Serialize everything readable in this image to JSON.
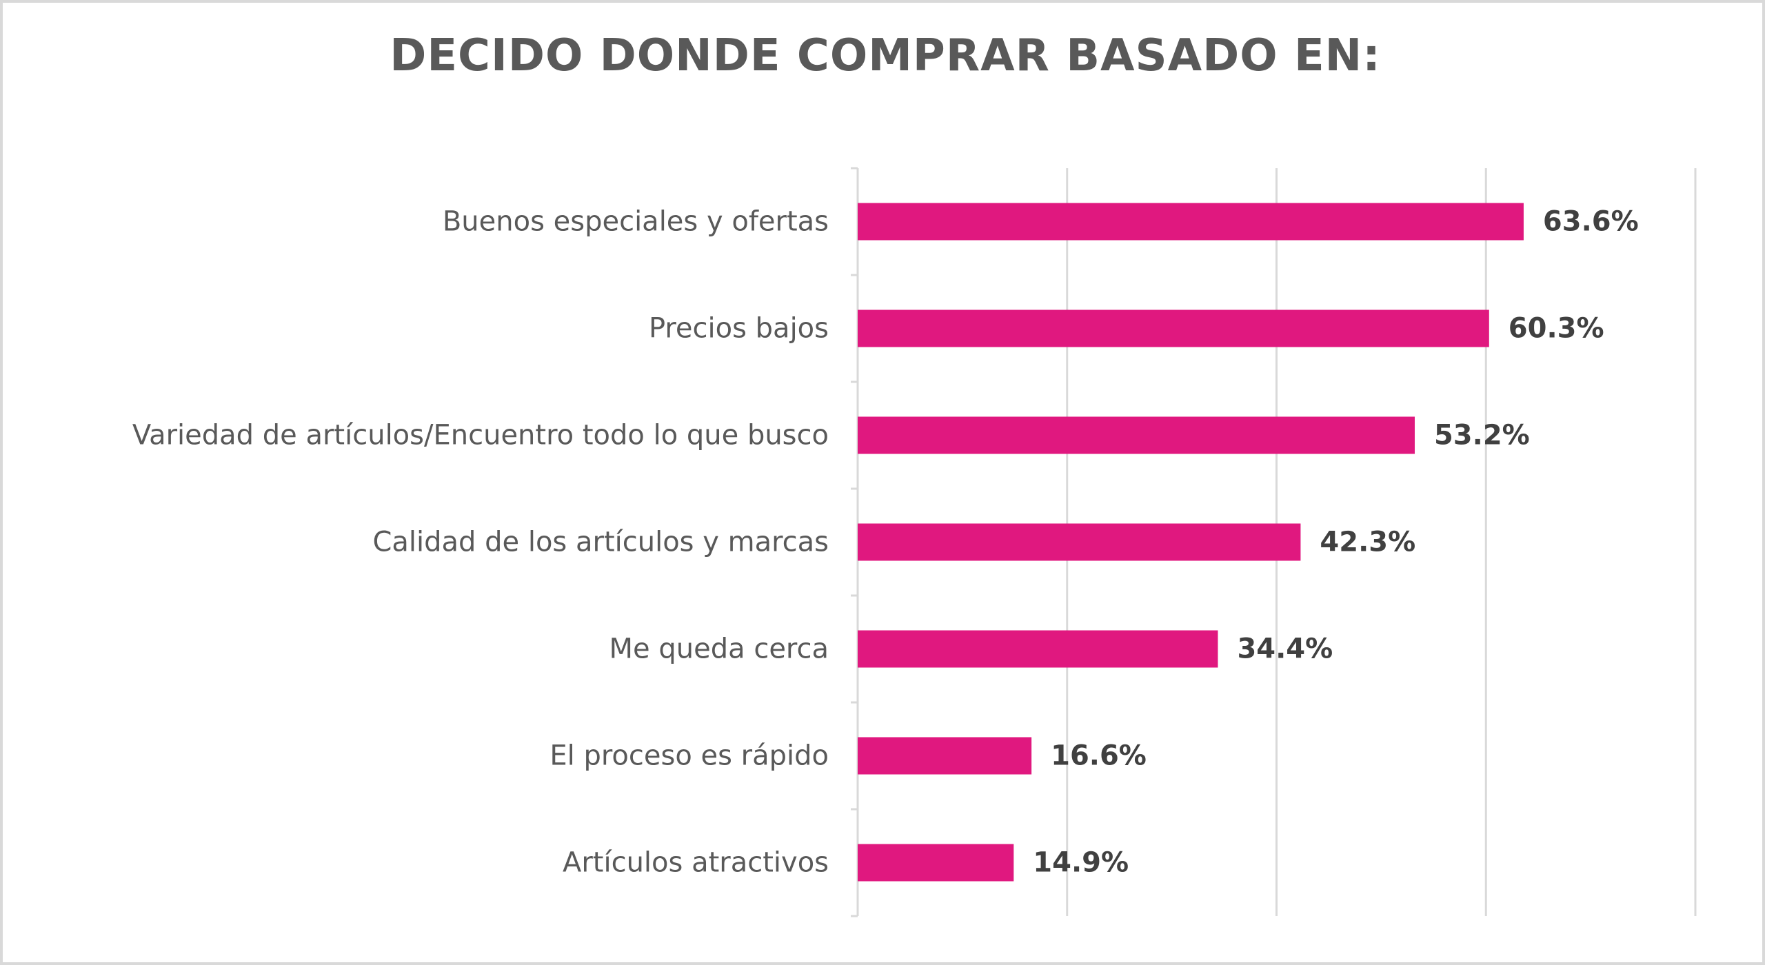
{
  "chart_data": {
    "type": "bar",
    "orientation": "horizontal",
    "title": "DECIDO DONDE COMPRAR BASADO EN:",
    "categories": [
      "Buenos especiales y ofertas",
      "Precios bajos",
      "Variedad de artículos/Encuentro todo lo que busco",
      "Calidad de los artículos y marcas",
      "Me queda cerca",
      "El proceso es rápido",
      "Artículos atractivos"
    ],
    "values": [
      63.6,
      60.3,
      53.2,
      42.3,
      34.4,
      16.6,
      14.9
    ],
    "value_labels": [
      "63.6%",
      "60.3%",
      "53.2%",
      "42.3%",
      "34.4%",
      "16.6%",
      "14.9%"
    ],
    "xlim": [
      0,
      80
    ],
    "grid": true,
    "xlabel": "",
    "ylabel": "",
    "legend": "none"
  },
  "colors": {
    "bar": "#e0187f",
    "grid": "#d9d9d9",
    "title": "#595959",
    "category_text": "#595959",
    "value_text": "#404040"
  }
}
